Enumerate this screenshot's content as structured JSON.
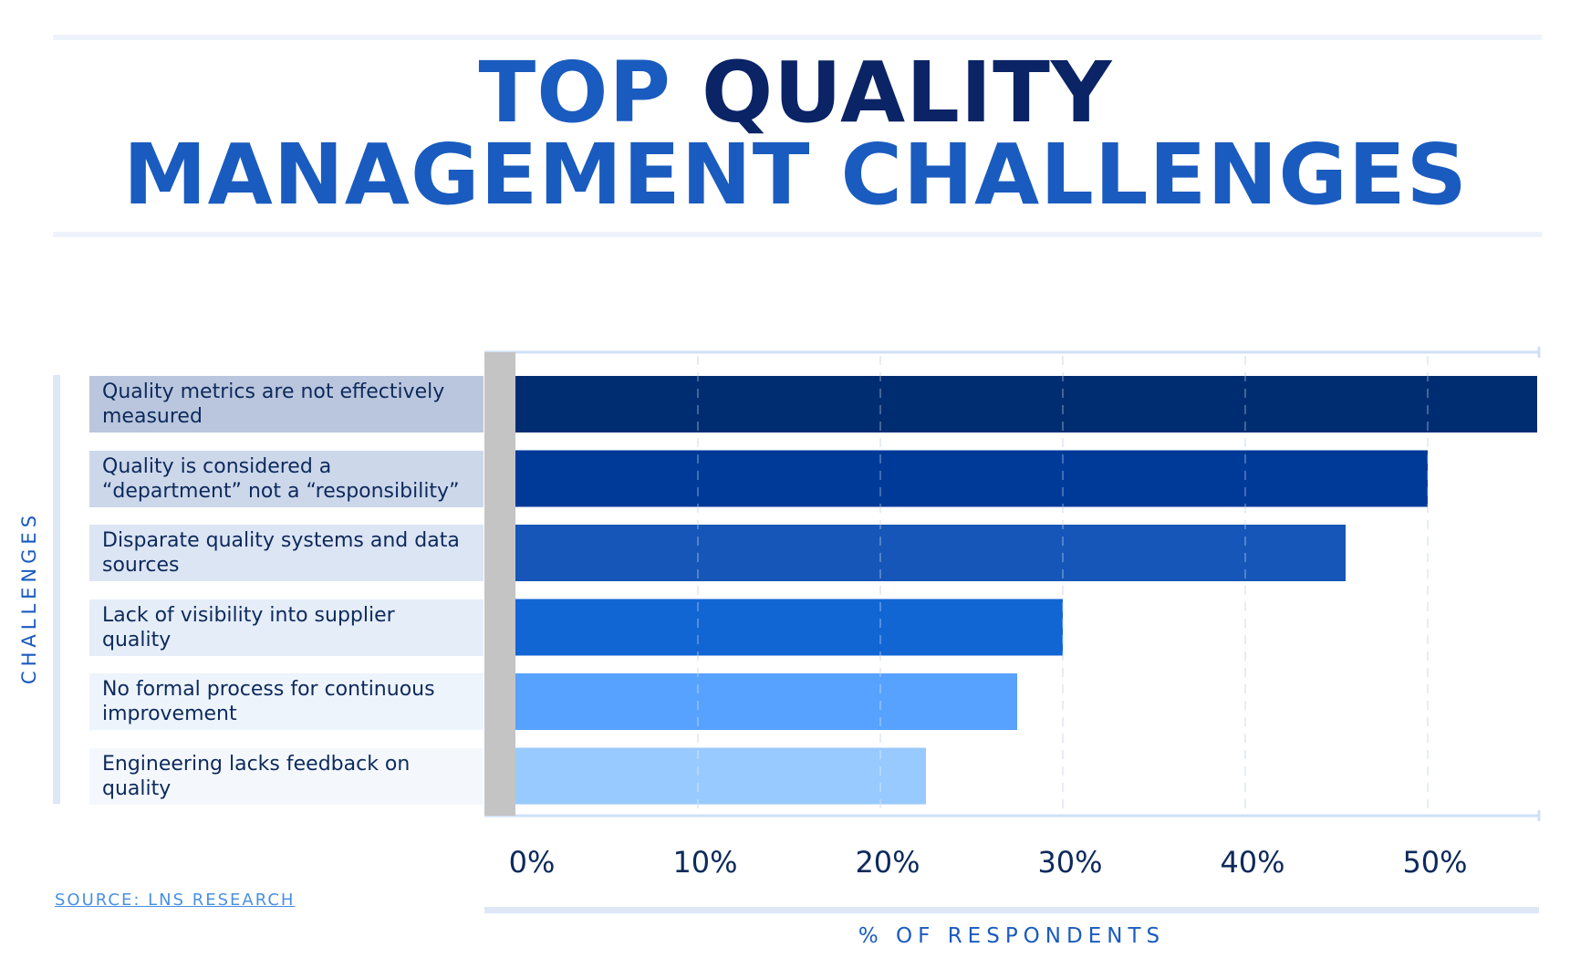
{
  "title": {
    "line1_a": "TOP",
    "line1_b": "QUALITY",
    "line2": "MANAGEMENT CHALLENGES"
  },
  "source": "SOURCE: LNS RESEARCH",
  "colors": {
    "title_light": "#1a5bbf",
    "title_dark": "#0a2466",
    "bars": [
      "#002d72",
      "#003a99",
      "#1556b8",
      "#1166d4",
      "#57a2ff",
      "#99caff"
    ],
    "label_bg": [
      "#bac6dd",
      "#ccd7ea",
      "#dce5f4",
      "#e5edf9",
      "#eef4fc",
      "#f4f8fd"
    ]
  },
  "chart_data": {
    "type": "bar",
    "orientation": "horizontal",
    "ylabel": "CHALLENGES",
    "xlabel": "% OF RESPONDENTS",
    "xlim": [
      0,
      56
    ],
    "xticks": [
      0,
      10,
      20,
      30,
      40,
      50
    ],
    "xtick_labels": [
      "0%",
      "10%",
      "20%",
      "30%",
      "40%",
      "50%"
    ],
    "grid": true,
    "categories": [
      "Quality metrics are not effectively measured",
      "Quality is considered a “department” not a “responsibility”",
      "Disparate quality systems and data sources",
      "Lack of visibility into supplier quality",
      "No formal process for continuous improvement",
      "Engineering lacks feedback on quality"
    ],
    "values": [
      56,
      50,
      45.5,
      30,
      27.5,
      22.5
    ]
  }
}
